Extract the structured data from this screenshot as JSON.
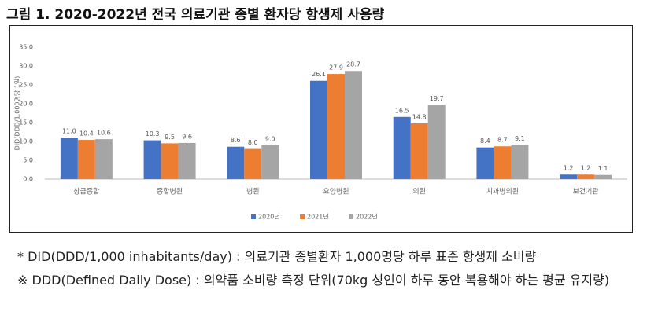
{
  "header": {
    "title": "그림 1. 2020-2022년 전국 의료기관 종별 환자당 항생제 사용량"
  },
  "chart_data": {
    "type": "bar",
    "y_label": "DID(DDD/1,000명당 1일)",
    "categories": [
      "상급종합",
      "종합병원",
      "병원",
      "요양병원",
      "의원",
      "치과병의원",
      "보건기관"
    ],
    "series": [
      {
        "name": "2020년",
        "color": "#4472c4",
        "values": [
          11.0,
          10.3,
          8.6,
          26.1,
          16.5,
          8.4,
          1.2
        ],
        "value_labels": [
          "11.0",
          "10.3",
          "8.6",
          "26.1",
          "16.5",
          "8.4",
          "1.2"
        ]
      },
      {
        "name": "2021년",
        "color": "#ed7d31",
        "values": [
          10.4,
          9.5,
          8.0,
          27.9,
          14.8,
          8.7,
          1.2
        ],
        "value_labels": [
          "10.4",
          "9.5",
          "8.0",
          "27.9",
          "14.8",
          "8.7",
          "1.2"
        ]
      },
      {
        "name": "2022년",
        "color": "#a5a5a5",
        "values": [
          10.6,
          9.6,
          9.0,
          28.7,
          19.7,
          9.1,
          1.1
        ],
        "value_labels": [
          "10.6",
          "9.6",
          "9.0",
          "28.7",
          "19.7",
          "9.1",
          "1.1"
        ]
      }
    ],
    "ylim": [
      0,
      35
    ],
    "yticks": [
      {
        "value": 0,
        "label": "0.0"
      },
      {
        "value": 5,
        "label": "5.0"
      },
      {
        "value": 10,
        "label": "10.0"
      },
      {
        "value": 15,
        "label": "15.0"
      },
      {
        "value": 20,
        "label": "20.0"
      },
      {
        "value": 25,
        "label": "25.0"
      },
      {
        "value": 30,
        "label": "30.0"
      },
      {
        "value": 35,
        "label": "35.0"
      }
    ],
    "grid": false,
    "legend": "bottom"
  },
  "notes": [
    "* DID(DDD/1,000 inhabitants/day) : 의료기관 종별환자 1,000명당 하루 표준 항생제 소비량",
    "※ DDD(Defined Daily Dose) : 의약품 소비량 측정 단위(70kg 성인이 하루 동안 복용해야 하는 평균 유지량)"
  ]
}
